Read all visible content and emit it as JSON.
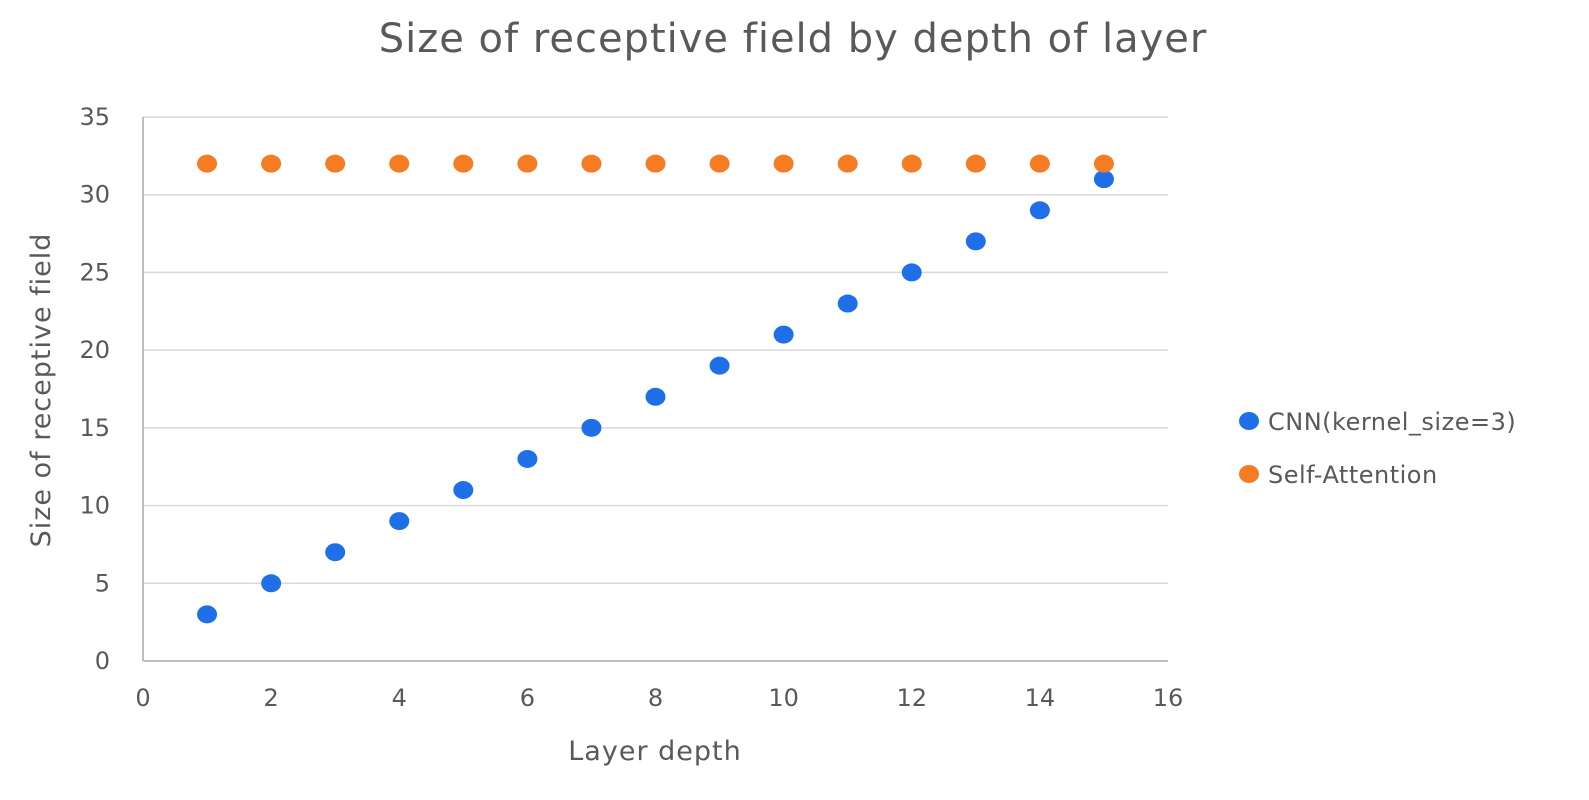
{
  "chart_data": {
    "type": "scatter",
    "title": "Size of receptive field by depth of layer",
    "xlabel": "Layer depth",
    "ylabel": "Size of receptive field",
    "xlim": [
      0,
      16
    ],
    "ylim": [
      0,
      35
    ],
    "xticks": [
      0,
      2,
      4,
      6,
      8,
      10,
      12,
      14,
      16
    ],
    "yticks": [
      0,
      5,
      10,
      15,
      20,
      25,
      30,
      35
    ],
    "grid": "horizontal",
    "legend_position": "right",
    "series": [
      {
        "name": "CNN(kernel_size=3)",
        "color": "#1f6fe8",
        "x": [
          1,
          2,
          3,
          4,
          5,
          6,
          7,
          8,
          9,
          10,
          11,
          12,
          13,
          14,
          15
        ],
        "y": [
          3,
          5,
          7,
          9,
          11,
          13,
          15,
          17,
          19,
          21,
          23,
          25,
          27,
          29,
          31
        ]
      },
      {
        "name": "Self-Attention",
        "color": "#f57c23",
        "x": [
          1,
          2,
          3,
          4,
          5,
          6,
          7,
          8,
          9,
          10,
          11,
          12,
          13,
          14,
          15
        ],
        "y": [
          32,
          32,
          32,
          32,
          32,
          32,
          32,
          32,
          32,
          32,
          32,
          32,
          32,
          32,
          32
        ]
      }
    ]
  }
}
